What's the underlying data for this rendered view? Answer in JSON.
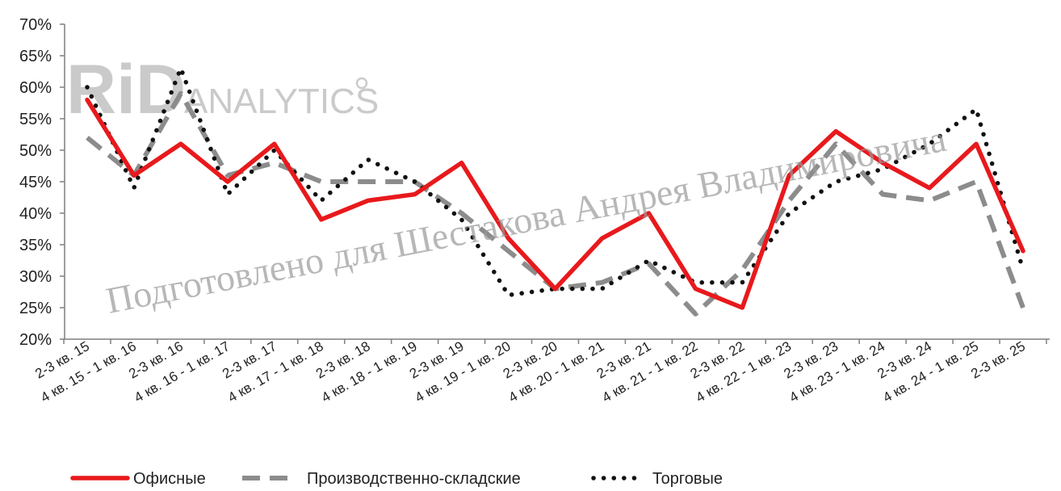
{
  "watermark": {
    "logo": "RiD",
    "analytics": "ANALYTICS",
    "text": "Подготовлено для Шестакова Андрея Владимировича"
  },
  "colors": {
    "office": "#e8191c",
    "industrial": "#8c8c8c",
    "retail": "#111111",
    "axis": "#7f7f7f"
  },
  "chart_data": {
    "type": "line",
    "title": "",
    "xlabel": "",
    "ylabel": "",
    "ylim": [
      20,
      70
    ],
    "yticks": [
      20,
      25,
      30,
      35,
      40,
      45,
      50,
      55,
      60,
      65,
      70
    ],
    "ytick_labels": [
      "20%",
      "25%",
      "30%",
      "35%",
      "40%",
      "45%",
      "50%",
      "55%",
      "60%",
      "65%",
      "70%"
    ],
    "grid": false,
    "legend_position": "bottom",
    "categories": [
      "2-3 кв. 15",
      "4 кв. 15 - 1 кв. 16",
      "2-3 кв. 16",
      "4 кв. 16 - 1 кв. 17",
      "2-3 кв. 17",
      "4 кв. 17 - 1 кв. 18",
      "2-3 кв. 18",
      "4 кв. 18 - 1 кв. 19",
      "2-3 кв. 19",
      "4 кв. 19 - 1 кв. 20",
      "2-3 кв. 20",
      "4 кв. 20 - 1 кв. 21",
      "2-3 кв. 21",
      "4 кв. 21 - 1 кв. 22",
      "2-3 кв. 22",
      "4 кв. 22 - 1 кв. 23",
      "2-3 кв. 23",
      "4 кв. 23 - 1 кв. 24",
      "2-3 кв. 24",
      "4 кв. 24 - 1 кв. 25",
      "2-3 кв. 25"
    ],
    "series": [
      {
        "name": "Офисные",
        "style": "solid",
        "color": "#e8191c",
        "values": [
          58,
          46,
          51,
          45,
          51,
          39,
          42,
          43,
          48,
          36,
          28,
          36,
          40,
          28,
          25,
          46,
          53,
          48,
          44,
          51,
          34
        ]
      },
      {
        "name": "Производственно-складские",
        "style": "dashed",
        "color": "#8c8c8c",
        "values": [
          52,
          46,
          59,
          46,
          48,
          45,
          45,
          45,
          40,
          34,
          28,
          29,
          32,
          24,
          31,
          42,
          51,
          43,
          42,
          45,
          25
        ]
      },
      {
        "name": "Торговые",
        "style": "dotted",
        "color": "#111111",
        "values": [
          60,
          44,
          63,
          43,
          50,
          42,
          48.5,
          45,
          39,
          27,
          28,
          28,
          32.5,
          29,
          29,
          40,
          45,
          47,
          51,
          56.5,
          31
        ]
      }
    ]
  }
}
